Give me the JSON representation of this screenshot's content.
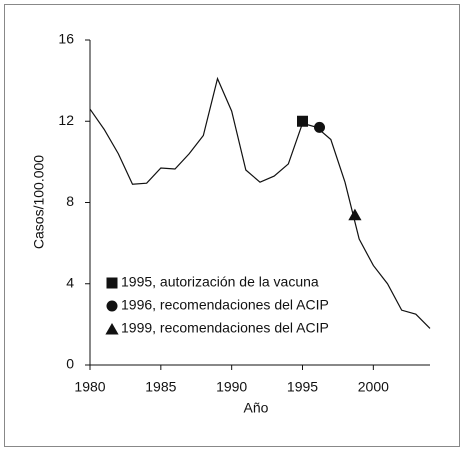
{
  "chart_data": {
    "type": "line",
    "x": [
      1980,
      1981,
      1982,
      1983,
      1984,
      1985,
      1986,
      1987,
      1988,
      1989,
      1990,
      1991,
      1992,
      1993,
      1994,
      1995,
      1996,
      1997,
      1998,
      1999,
      2000,
      2001,
      2002,
      2003,
      2004
    ],
    "values": [
      12.6,
      11.6,
      10.4,
      8.9,
      8.95,
      9.7,
      9.65,
      10.4,
      11.3,
      14.1,
      12.5,
      9.6,
      9.0,
      9.3,
      9.9,
      11.9,
      11.7,
      11.1,
      9.0,
      6.2,
      4.9,
      4.0,
      2.7,
      2.5,
      1.8
    ],
    "color": "#111111",
    "xlabel": "Año",
    "ylabel": "Casos/100.000",
    "xlim": [
      1980,
      2004
    ],
    "ylim": [
      0,
      16
    ],
    "xticks": [
      1980,
      1985,
      1990,
      1995,
      2000
    ],
    "yticks": [
      0,
      4,
      8,
      12,
      16
    ],
    "markers": [
      {
        "label": "1995, autorización de la vacuna",
        "x": 1995,
        "y": 12.0,
        "shape": "square"
      },
      {
        "label": "1996, recomendaciones del ACIP",
        "x": 1996.2,
        "y": 11.7,
        "shape": "circle"
      },
      {
        "label": "1999, recomendaciones del ACIP",
        "x": 1998.7,
        "y": 7.4,
        "shape": "triangle"
      }
    ]
  }
}
